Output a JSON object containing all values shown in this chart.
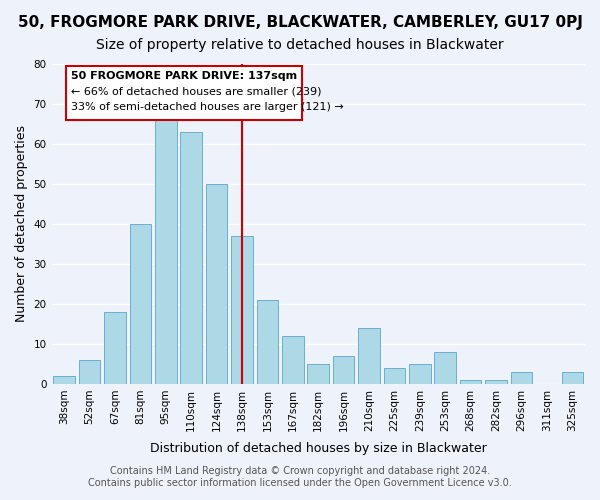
{
  "title": "50, FROGMORE PARK DRIVE, BLACKWATER, CAMBERLEY, GU17 0PJ",
  "subtitle": "Size of property relative to detached houses in Blackwater",
  "xlabel": "Distribution of detached houses by size in Blackwater",
  "ylabel": "Number of detached properties",
  "bin_labels": [
    "38sqm",
    "52sqm",
    "67sqm",
    "81sqm",
    "95sqm",
    "110sqm",
    "124sqm",
    "138sqm",
    "153sqm",
    "167sqm",
    "182sqm",
    "196sqm",
    "210sqm",
    "225sqm",
    "239sqm",
    "253sqm",
    "268sqm",
    "282sqm",
    "296sqm",
    "311sqm",
    "325sqm"
  ],
  "bar_heights": [
    2,
    6,
    18,
    40,
    66,
    63,
    50,
    37,
    21,
    12,
    5,
    7,
    14,
    4,
    5,
    8,
    1,
    1,
    3,
    0,
    3
  ],
  "bar_color": "#add8e6",
  "bar_edge_color": "#6baed6",
  "vline_x": 7,
  "vline_color": "#cc0000",
  "annotation_title": "50 FROGMORE PARK DRIVE: 137sqm",
  "annotation_line1": "← 66% of detached houses are smaller (239)",
  "annotation_line2": "33% of semi-detached houses are larger (121) →",
  "annotation_box_color": "#ffffff",
  "annotation_box_edge_color": "#cc0000",
  "ylim": [
    0,
    80
  ],
  "yticks": [
    0,
    10,
    20,
    30,
    40,
    50,
    60,
    70,
    80
  ],
  "footer1": "Contains HM Land Registry data © Crown copyright and database right 2024.",
  "footer2": "Contains public sector information licensed under the Open Government Licence v3.0.",
  "background_color": "#eef2fa",
  "grid_color": "#ffffff",
  "title_fontsize": 11,
  "subtitle_fontsize": 10,
  "axis_label_fontsize": 9,
  "tick_fontsize": 7.5,
  "footer_fontsize": 7
}
